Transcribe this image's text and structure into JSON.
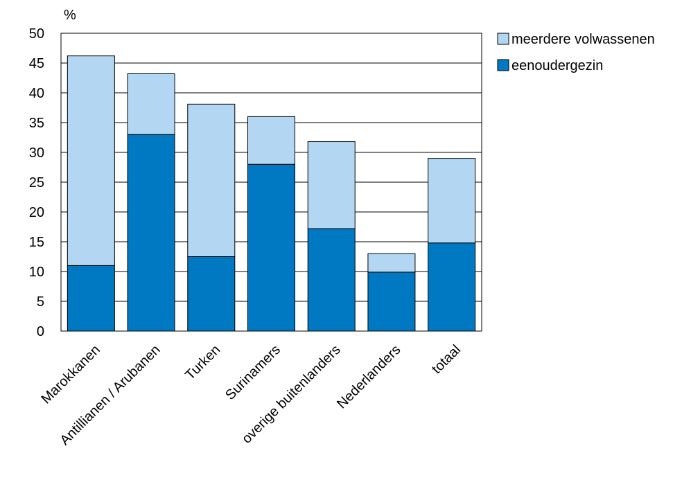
{
  "chart_data": {
    "type": "bar",
    "stacked": true,
    "categories": [
      "Marokkanen",
      "Antillianen / Arubanen",
      "Turken",
      "Surinamers",
      "overige buitenlanders",
      "Nederlanders",
      "totaal"
    ],
    "series": [
      {
        "name": "eenoudergezin",
        "values": [
          11,
          33,
          12.5,
          28,
          17.2,
          9.9,
          14.8
        ],
        "color": "#0079C2"
      },
      {
        "name": "meerdere volwassenen",
        "values": [
          35.2,
          10.2,
          25.6,
          8,
          14.6,
          3.1,
          14.2
        ],
        "color": "#B3D7F2"
      }
    ],
    "ylabel": "%",
    "ylim": [
      0,
      50
    ],
    "yticks": [
      0,
      5,
      10,
      15,
      20,
      25,
      30,
      35,
      40,
      45,
      50
    ],
    "grid": true,
    "legend": "top-right"
  }
}
